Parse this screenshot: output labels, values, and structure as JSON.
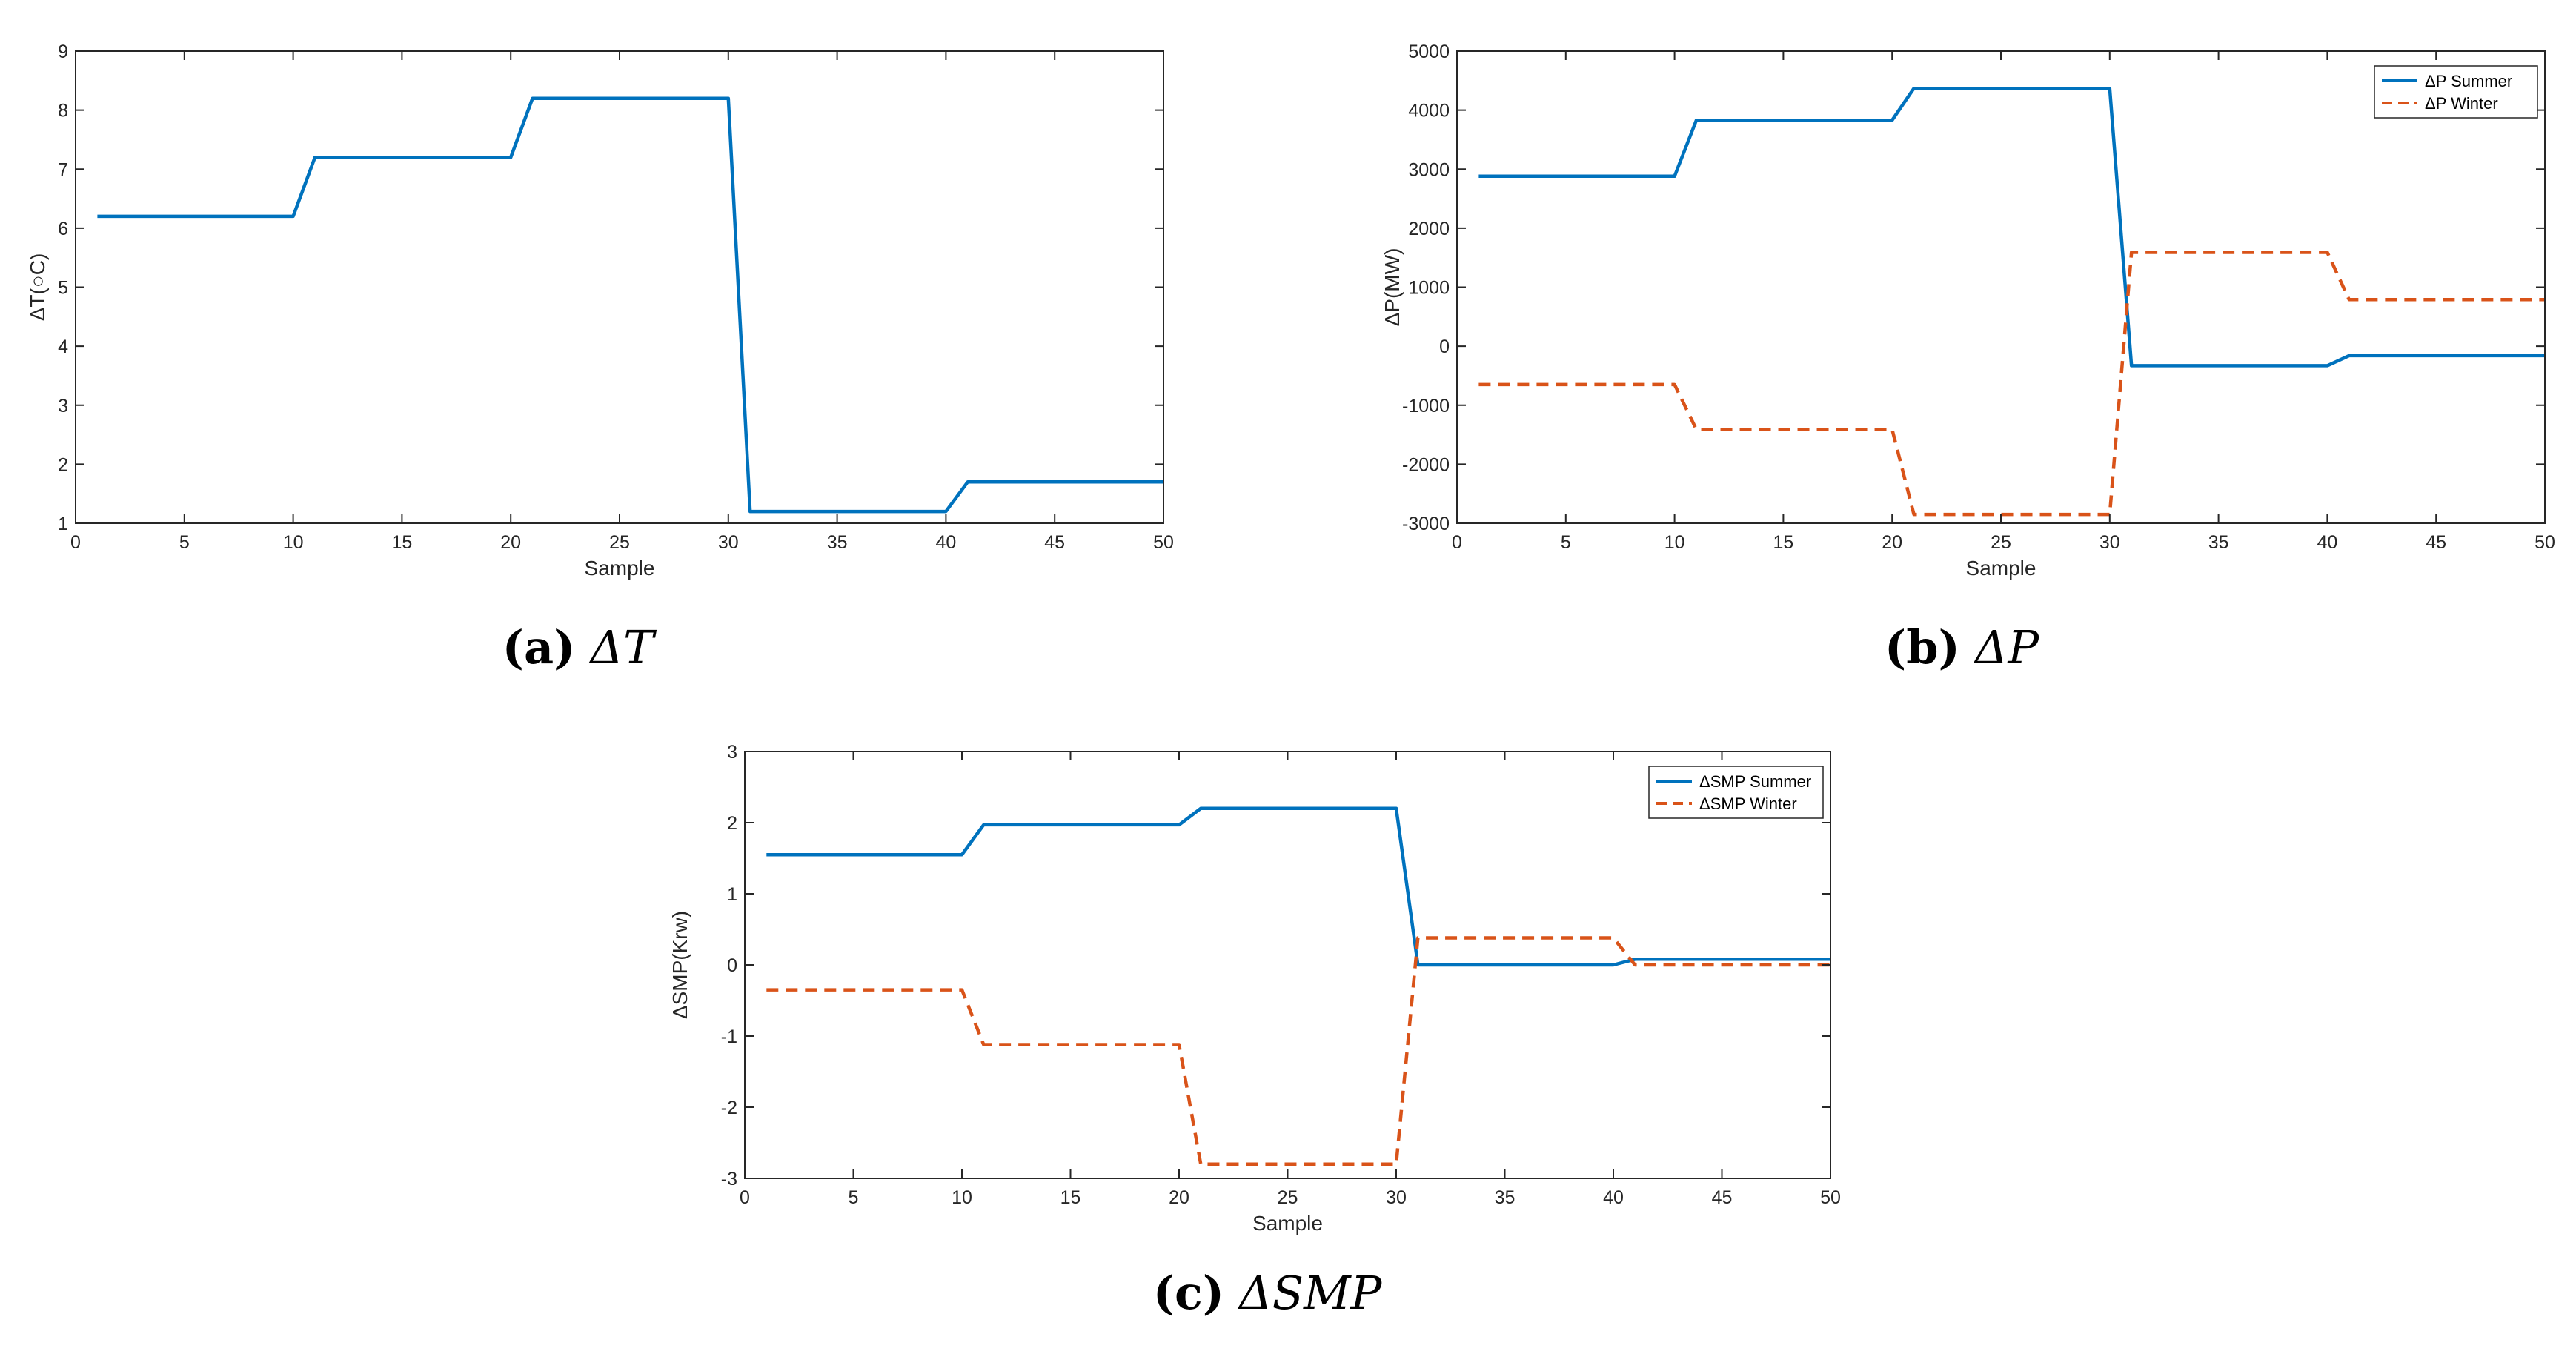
{
  "chart_data": [
    {
      "id": "a",
      "type": "line",
      "caption_label": "(a)",
      "caption_symbol": "ΔT",
      "xlabel": "Sample",
      "ylabel": "ΔT(○C)",
      "xlim": [
        0,
        50
      ],
      "ylim": [
        1,
        9
      ],
      "xticks": [
        0,
        5,
        10,
        15,
        20,
        25,
        30,
        35,
        40,
        45,
        50
      ],
      "yticks": [
        1,
        2,
        3,
        4,
        5,
        6,
        7,
        8,
        9
      ],
      "legend": null,
      "series": [
        {
          "name": "ΔT",
          "color": "#0072BD",
          "style": "solid",
          "points": [
            [
              1,
              6.2
            ],
            [
              10,
              6.2
            ],
            [
              11,
              7.2
            ],
            [
              20,
              7.2
            ],
            [
              21,
              8.2
            ],
            [
              30,
              8.2
            ],
            [
              31,
              1.2
            ],
            [
              40,
              1.2
            ],
            [
              41,
              1.7
            ],
            [
              50,
              1.7
            ]
          ]
        }
      ]
    },
    {
      "id": "b",
      "type": "line",
      "caption_label": "(b)",
      "caption_symbol": "ΔP",
      "xlabel": "Sample",
      "ylabel": "ΔP(MW)",
      "xlim": [
        0,
        50
      ],
      "ylim": [
        -3000,
        5000
      ],
      "xticks": [
        0,
        5,
        10,
        15,
        20,
        25,
        30,
        35,
        40,
        45,
        50
      ],
      "yticks": [
        -3000,
        -2000,
        -1000,
        0,
        1000,
        2000,
        3000,
        4000,
        5000
      ],
      "legend": "top-right",
      "series": [
        {
          "name": "ΔP Summer",
          "color": "#0072BD",
          "style": "solid",
          "points": [
            [
              1,
              2880
            ],
            [
              10,
              2880
            ],
            [
              11,
              3830
            ],
            [
              20,
              3830
            ],
            [
              21,
              4370
            ],
            [
              30,
              4370
            ],
            [
              31,
              -330
            ],
            [
              40,
              -330
            ],
            [
              41,
              -160
            ],
            [
              50,
              -160
            ]
          ]
        },
        {
          "name": "ΔP Winter",
          "color": "#D95319",
          "style": "dashed",
          "points": [
            [
              1,
              -650
            ],
            [
              10,
              -650
            ],
            [
              11,
              -1410
            ],
            [
              20,
              -1410
            ],
            [
              21,
              -2850
            ],
            [
              30,
              -2850
            ],
            [
              31,
              1590
            ],
            [
              40,
              1590
            ],
            [
              41,
              790
            ],
            [
              50,
              790
            ]
          ]
        }
      ]
    },
    {
      "id": "c",
      "type": "line",
      "caption_label": "(c)",
      "caption_symbol": "ΔSMP",
      "xlabel": "Sample",
      "ylabel": "ΔSMP(Krw)",
      "xlim": [
        0,
        50
      ],
      "ylim": [
        -3,
        3
      ],
      "xticks": [
        0,
        5,
        10,
        15,
        20,
        25,
        30,
        35,
        40,
        45,
        50
      ],
      "yticks": [
        -3,
        -2,
        -1,
        0,
        1,
        2,
        3
      ],
      "legend": "top-right",
      "series": [
        {
          "name": "ΔSMP Summer",
          "color": "#0072BD",
          "style": "solid",
          "points": [
            [
              1,
              1.55
            ],
            [
              10,
              1.55
            ],
            [
              11,
              1.97
            ],
            [
              20,
              1.97
            ],
            [
              21,
              2.2
            ],
            [
              30,
              2.2
            ],
            [
              31,
              0.0
            ],
            [
              40,
              0.0
            ],
            [
              41,
              0.08
            ],
            [
              50,
              0.08
            ]
          ]
        },
        {
          "name": "ΔSMP Winter",
          "color": "#D95319",
          "style": "dashed",
          "points": [
            [
              1,
              -0.35
            ],
            [
              10,
              -0.35
            ],
            [
              11,
              -1.12
            ],
            [
              20,
              -1.12
            ],
            [
              21,
              -2.8
            ],
            [
              30,
              -2.8
            ],
            [
              31,
              0.38
            ],
            [
              40,
              0.38
            ],
            [
              41,
              0.0
            ],
            [
              50,
              0.0
            ]
          ]
        }
      ]
    }
  ]
}
